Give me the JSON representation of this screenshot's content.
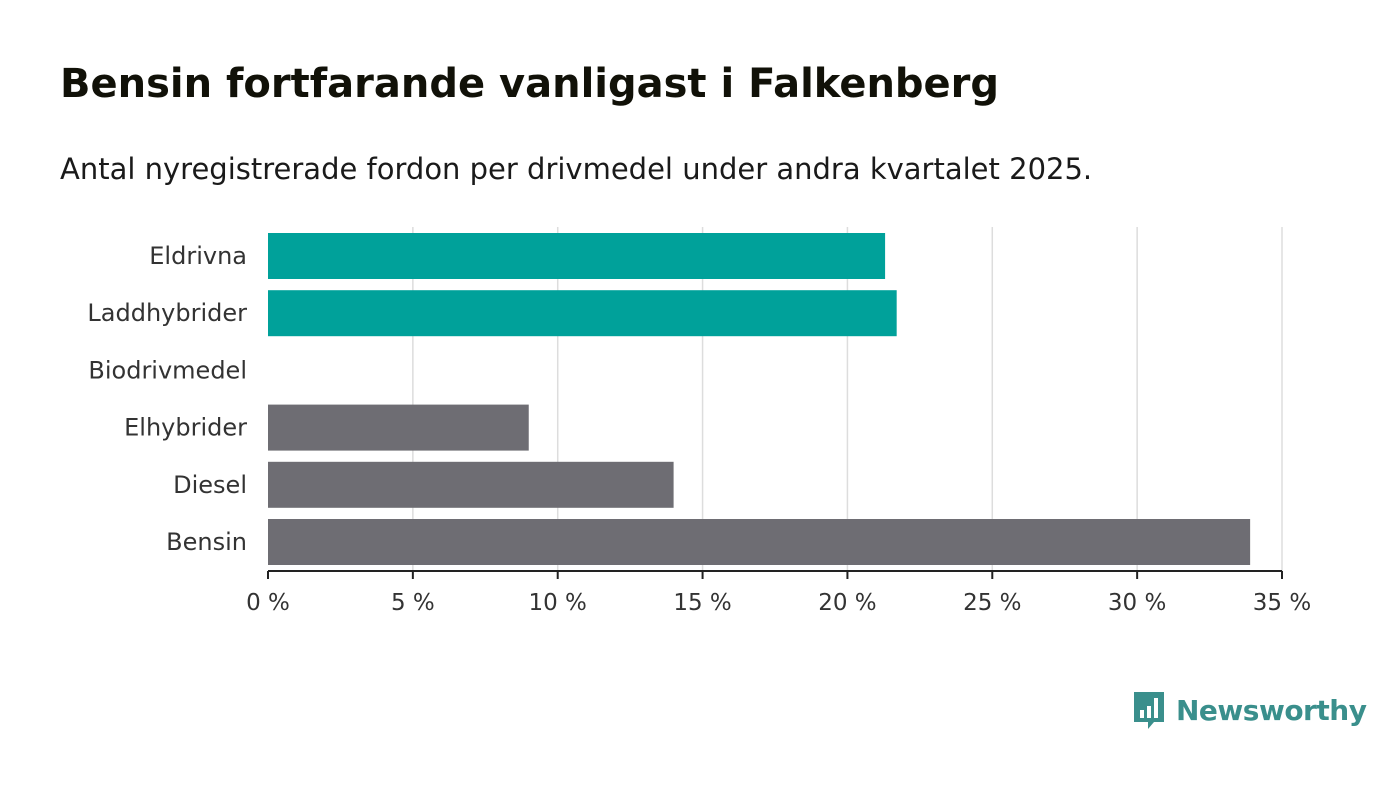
{
  "header": {
    "title": "Bensin fortfarande vanligast i Falkenberg",
    "subtitle": "Antal nyregistrerade fordon per drivmedel under andra kvartalet 2025."
  },
  "brand": {
    "name": "Newsworthy",
    "logo_icon": "bar-chart-speech-bubble-icon",
    "color": "#3a8f8c"
  },
  "colors": {
    "highlight": "#00a19a",
    "default": "#6e6d73",
    "grid": "#dddddd",
    "axis": "#222222"
  },
  "chart_data": {
    "type": "bar",
    "orientation": "horizontal",
    "categories": [
      "Eldrivna",
      "Laddhybrider",
      "Biodrivmedel",
      "Elhybrider",
      "Diesel",
      "Bensin"
    ],
    "values": [
      21.3,
      21.7,
      0,
      9.0,
      14.0,
      33.9
    ],
    "highlighted": [
      true,
      true,
      false,
      false,
      false,
      false
    ],
    "xlim": [
      0,
      35
    ],
    "xticks": [
      0,
      5,
      10,
      15,
      20,
      25,
      30,
      35
    ],
    "tick_labels": [
      "0 %",
      "5 %",
      "10 %",
      "15 %",
      "20 %",
      "25 %",
      "30 %",
      "35 %"
    ],
    "grid": true,
    "legend": "none"
  }
}
